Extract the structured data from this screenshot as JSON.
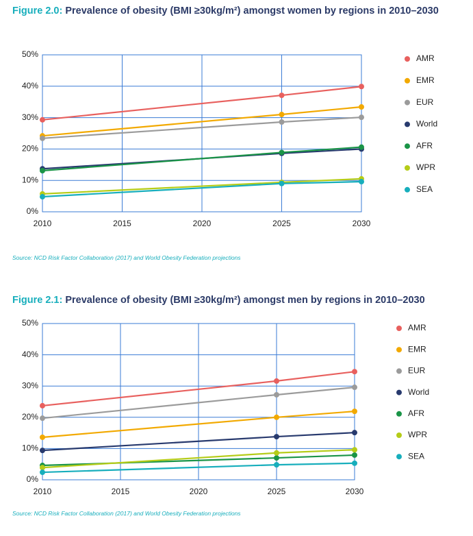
{
  "chart_data": [
    {
      "type": "line",
      "figure_label": "Figure 2.0:",
      "title": "Prevalence of obesity (BMI ≥30kg/m²) amongst women by regions in 2010–2030",
      "source": "Source: NCD Risk Factor Collaboration (2017) and World Obesity Federation projections",
      "x": [
        2010,
        2025,
        2030
      ],
      "xlim": [
        2010,
        2030
      ],
      "xticks": [
        2010,
        2015,
        2020,
        2025,
        2030
      ],
      "ylim": [
        0,
        50
      ],
      "yticks": [
        {
          "value": 0,
          "label": "0%"
        },
        {
          "value": 10,
          "label": "10%"
        },
        {
          "value": 20,
          "label": "20%"
        },
        {
          "value": 30,
          "label": "30%"
        },
        {
          "value": 40,
          "label": "40%"
        },
        {
          "value": 50,
          "label": "50%"
        }
      ],
      "grid": true,
      "legend": "right",
      "series": [
        {
          "name": "AMR",
          "color": "#e8605e",
          "values": [
            29.3,
            37.1,
            39.9
          ]
        },
        {
          "name": "EMR",
          "color": "#f2a900",
          "values": [
            24.2,
            31.0,
            33.4
          ]
        },
        {
          "name": "EUR",
          "color": "#9b9b9b",
          "values": [
            23.4,
            28.6,
            30.1
          ]
        },
        {
          "name": "World",
          "color": "#283a6e",
          "values": [
            13.7,
            18.6,
            20.0
          ]
        },
        {
          "name": "AFR",
          "color": "#1a9447",
          "values": [
            13.1,
            18.9,
            20.6
          ]
        },
        {
          "name": "WPR",
          "color": "#b5cc18",
          "values": [
            5.7,
            9.4,
            10.5
          ]
        },
        {
          "name": "SEA",
          "color": "#17aebc",
          "values": [
            4.8,
            9.0,
            9.6
          ]
        }
      ]
    },
    {
      "type": "line",
      "figure_label": "Figure 2.1:",
      "title": "Prevalence of obesity (BMI ≥30kg/m²) amongst men by regions in 2010–2030",
      "source": "Source: NCD Risk Factor Collaboration (2017) and World Obesity Federation projections",
      "x": [
        2010,
        2025,
        2030
      ],
      "xlim": [
        2010,
        2030
      ],
      "xticks": [
        2010,
        2015,
        2020,
        2025,
        2030
      ],
      "ylim": [
        0,
        50
      ],
      "yticks": [
        {
          "value": 0,
          "label": "0%"
        },
        {
          "value": 10,
          "label": "10%"
        },
        {
          "value": 20,
          "label": "20%"
        },
        {
          "value": 30,
          "label": "30%"
        },
        {
          "value": 40,
          "label": "40%"
        },
        {
          "value": 50,
          "label": "50%"
        }
      ],
      "grid": true,
      "legend": "right",
      "series": [
        {
          "name": "AMR",
          "color": "#e8605e",
          "values": [
            23.7,
            31.6,
            34.6
          ]
        },
        {
          "name": "EMR",
          "color": "#f2a900",
          "values": [
            13.6,
            20.0,
            21.9
          ]
        },
        {
          "name": "EUR",
          "color": "#9b9b9b",
          "values": [
            19.7,
            27.2,
            29.6
          ]
        },
        {
          "name": "World",
          "color": "#283a6e",
          "values": [
            9.4,
            13.8,
            15.1
          ]
        },
        {
          "name": "AFR",
          "color": "#1a9447",
          "values": [
            4.6,
            7.0,
            7.9
          ]
        },
        {
          "name": "WPR",
          "color": "#b5cc18",
          "values": [
            3.9,
            8.6,
            9.6
          ]
        },
        {
          "name": "SEA",
          "color": "#17aebc",
          "values": [
            2.4,
            4.8,
            5.3
          ]
        }
      ]
    }
  ]
}
